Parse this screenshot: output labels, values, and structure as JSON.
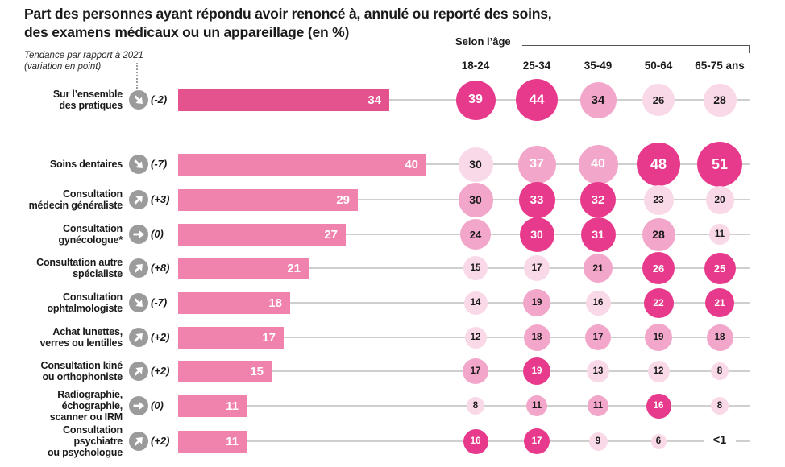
{
  "title": {
    "line1": "Part des personnes ayant répondu avoir renoncé à, annulé ou reporté des soins,",
    "line2": "des examens médicaux ou un appareillage (en %)"
  },
  "annotation": {
    "line1": "Tendance par rapport à 2021",
    "line2": "(variation en point)"
  },
  "age_header": {
    "label": "Selon l’âge",
    "columns": [
      "18-24",
      "25-34",
      "35-49",
      "50-64",
      "65-75 ans"
    ]
  },
  "colors": {
    "bar_primary": "#e4538e",
    "bar_secondary": "#f083ae",
    "bubble_dark": "#e73a8c",
    "bubble_medium": "#f2a6c9",
    "bubble_light": "#f9d8e7",
    "line_gray": "#cfcfcf",
    "icon_gray": "#9b9b9b",
    "text_dark": "#1a1a1a",
    "text_white": "#ffffff"
  },
  "chart_data": {
    "type": "bar",
    "unit": "%",
    "title": "Part des personnes ayant répondu avoir renoncé à, annulé ou reporté des soins, des examens médicaux ou un appareillage (en %)",
    "age_groups": [
      "18-24",
      "25-34",
      "35-49",
      "50-64",
      "65-75 ans"
    ],
    "xlim": [
      0,
      55
    ],
    "rows": [
      {
        "label_lines": [
          "Sur l’ensemble",
          "des pratiques"
        ],
        "trend": "(-2)",
        "trend_dir": "down",
        "bar": 34,
        "by_age": [
          {
            "v": "39",
            "tone": "dark"
          },
          {
            "v": "44",
            "tone": "dark"
          },
          {
            "v": "34",
            "tone": "medium"
          },
          {
            "v": "26",
            "tone": "light"
          },
          {
            "v": "28",
            "tone": "light"
          }
        ]
      },
      {
        "label_lines": [
          "Soins dentaires"
        ],
        "trend": "(-7)",
        "trend_dir": "down",
        "bar": 40,
        "by_age": [
          {
            "v": "30",
            "tone": "light"
          },
          {
            "v": "37",
            "tone": "medium",
            "text": "white"
          },
          {
            "v": "40",
            "tone": "medium",
            "text": "white"
          },
          {
            "v": "48",
            "tone": "dark"
          },
          {
            "v": "51",
            "tone": "dark"
          }
        ]
      },
      {
        "label_lines": [
          "Consultation",
          "médecin généraliste"
        ],
        "trend": "(+3)",
        "trend_dir": "up",
        "bar": 29,
        "by_age": [
          {
            "v": "30",
            "tone": "medium"
          },
          {
            "v": "33",
            "tone": "dark"
          },
          {
            "v": "32",
            "tone": "dark"
          },
          {
            "v": "23",
            "tone": "light"
          },
          {
            "v": "20",
            "tone": "light"
          }
        ]
      },
      {
        "label_lines": [
          "Consultation",
          "gynécologue*"
        ],
        "trend": "(0)",
        "trend_dir": "flat",
        "bar": 27,
        "by_age": [
          {
            "v": "24",
            "tone": "medium"
          },
          {
            "v": "30",
            "tone": "dark"
          },
          {
            "v": "31",
            "tone": "dark"
          },
          {
            "v": "28",
            "tone": "medium"
          },
          {
            "v": "11",
            "tone": "light"
          }
        ]
      },
      {
        "label_lines": [
          "Consultation autre",
          "spécialiste"
        ],
        "trend": "(+8)",
        "trend_dir": "up",
        "bar": 21,
        "by_age": [
          {
            "v": "15",
            "tone": "light"
          },
          {
            "v": "17",
            "tone": "light"
          },
          {
            "v": "21",
            "tone": "medium"
          },
          {
            "v": "26",
            "tone": "dark"
          },
          {
            "v": "25",
            "tone": "dark"
          }
        ]
      },
      {
        "label_lines": [
          "Consultation",
          "ophtalmologiste"
        ],
        "trend": "(-7)",
        "trend_dir": "down",
        "bar": 18,
        "by_age": [
          {
            "v": "14",
            "tone": "light"
          },
          {
            "v": "19",
            "tone": "medium"
          },
          {
            "v": "16",
            "tone": "light"
          },
          {
            "v": "22",
            "tone": "dark"
          },
          {
            "v": "21",
            "tone": "dark"
          }
        ]
      },
      {
        "label_lines": [
          "Achat lunettes,",
          "verres ou lentilles"
        ],
        "trend": "(+2)",
        "trend_dir": "up",
        "bar": 17,
        "by_age": [
          {
            "v": "12",
            "tone": "light"
          },
          {
            "v": "18",
            "tone": "medium"
          },
          {
            "v": "17",
            "tone": "medium"
          },
          {
            "v": "19",
            "tone": "medium"
          },
          {
            "v": "18",
            "tone": "medium"
          }
        ]
      },
      {
        "label_lines": [
          "Consultation kiné",
          "ou orthophoniste"
        ],
        "trend": "(+2)",
        "trend_dir": "up",
        "bar": 15,
        "by_age": [
          {
            "v": "17",
            "tone": "medium"
          },
          {
            "v": "19",
            "tone": "dark"
          },
          {
            "v": "13",
            "tone": "light"
          },
          {
            "v": "12",
            "tone": "light"
          },
          {
            "v": "8",
            "tone": "light"
          }
        ]
      },
      {
        "label_lines": [
          "Radiographie,",
          "échographie,",
          "scanner ou IRM"
        ],
        "trend": "(0)",
        "trend_dir": "flat",
        "bar": 11,
        "by_age": [
          {
            "v": "8",
            "tone": "light"
          },
          {
            "v": "11",
            "tone": "medium"
          },
          {
            "v": "11",
            "tone": "medium"
          },
          {
            "v": "16",
            "tone": "dark"
          },
          {
            "v": "8",
            "tone": "light"
          }
        ]
      },
      {
        "label_lines": [
          "Consultation",
          "psychiatre",
          "ou psychologue"
        ],
        "trend": "(+2)",
        "trend_dir": "up",
        "bar": 11,
        "by_age": [
          {
            "v": "16",
            "tone": "dark"
          },
          {
            "v": "17",
            "tone": "dark"
          },
          {
            "v": "9",
            "tone": "light"
          },
          {
            "v": "6",
            "tone": "light"
          },
          {
            "v": "<1",
            "tone": "none"
          }
        ]
      }
    ]
  }
}
